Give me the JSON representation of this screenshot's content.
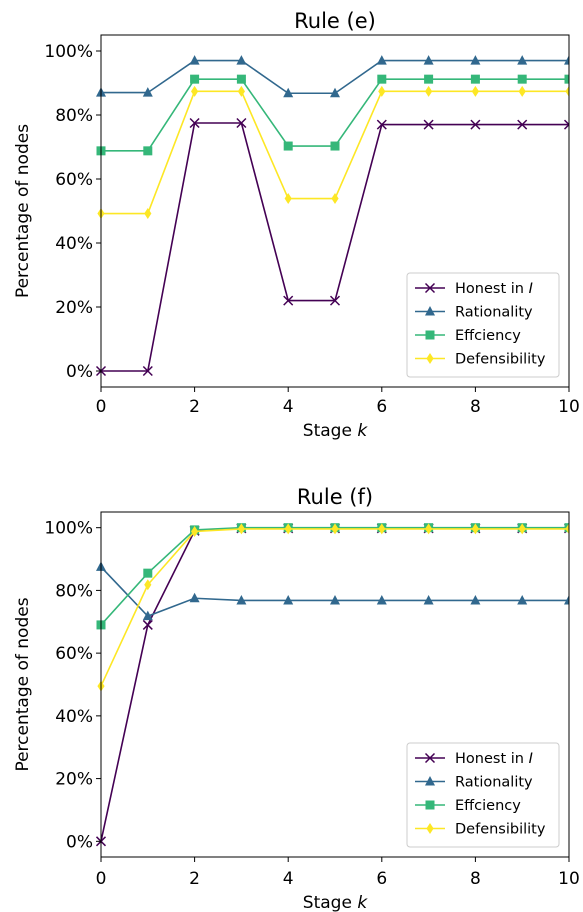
{
  "colors": {
    "honest": "#440154",
    "rationality": "#31688e",
    "efficiency": "#35b779",
    "defensibility": "#fde725"
  },
  "chart_data": [
    {
      "type": "line",
      "title": "Rule (e)",
      "xlabel": "Stage",
      "xlabel_var": "k",
      "ylabel": "Percentage of nodes",
      "xlim": [
        0,
        10
      ],
      "ylim": [
        -5,
        105
      ],
      "xticks": [
        0,
        2,
        4,
        6,
        8,
        10
      ],
      "yticks": [
        0,
        20,
        40,
        60,
        80,
        100
      ],
      "yticklabels": [
        "0%",
        "20%",
        "40%",
        "60%",
        "80%",
        "100%"
      ],
      "legend_position": "lower-right",
      "x": [
        0,
        1,
        2,
        3,
        4,
        5,
        6,
        7,
        8,
        9,
        10
      ],
      "series": [
        {
          "name": "Honest in ",
          "name_var": "I",
          "marker": "x",
          "color": "#440154",
          "values": [
            0,
            0,
            77.5,
            77.5,
            22,
            22,
            77,
            77,
            77,
            77,
            77
          ]
        },
        {
          "name": "Rationality",
          "marker": "triangle",
          "color": "#31688e",
          "values": [
            87,
            87,
            97,
            97,
            86.8,
            86.8,
            97,
            97,
            97,
            97,
            97
          ]
        },
        {
          "name": "Effciency",
          "marker": "square",
          "color": "#35b779",
          "values": [
            68.8,
            68.8,
            91.2,
            91.2,
            70.3,
            70.3,
            91.2,
            91.2,
            91.2,
            91.2,
            91.2
          ]
        },
        {
          "name": "Defensibility",
          "marker": "diamond",
          "color": "#fde725",
          "values": [
            49.2,
            49.2,
            87.4,
            87.4,
            53.9,
            53.9,
            87.4,
            87.4,
            87.4,
            87.4,
            87.4
          ]
        }
      ]
    },
    {
      "type": "line",
      "title": "Rule (f)",
      "xlabel": "Stage",
      "xlabel_var": "k",
      "ylabel": "Percentage of nodes",
      "xlim": [
        0,
        10
      ],
      "ylim": [
        -5,
        105
      ],
      "xticks": [
        0,
        2,
        4,
        6,
        8,
        10
      ],
      "yticks": [
        0,
        20,
        40,
        60,
        80,
        100
      ],
      "yticklabels": [
        "0%",
        "20%",
        "40%",
        "60%",
        "80%",
        "100%"
      ],
      "legend_position": "lower-right",
      "x": [
        0,
        1,
        2,
        3,
        4,
        5,
        6,
        7,
        8,
        9,
        10
      ],
      "series": [
        {
          "name": "Honest in ",
          "name_var": "I",
          "marker": "x",
          "color": "#440154",
          "values": [
            0,
            69,
            99,
            99.8,
            99.8,
            99.8,
            99.8,
            99.8,
            99.8,
            99.8,
            99.8
          ]
        },
        {
          "name": "Rationality",
          "marker": "triangle",
          "color": "#31688e",
          "values": [
            87.5,
            71.8,
            77.5,
            76.8,
            76.8,
            76.8,
            76.8,
            76.8,
            76.8,
            76.8,
            76.8
          ]
        },
        {
          "name": "Effciency",
          "marker": "square",
          "color": "#35b779",
          "values": [
            69,
            85.5,
            99.3,
            100,
            100,
            100,
            100,
            100,
            100,
            100,
            100
          ]
        },
        {
          "name": "Defensibility",
          "marker": "diamond",
          "color": "#fde725",
          "values": [
            49.5,
            81.8,
            98.8,
            99.6,
            99.6,
            99.6,
            99.6,
            99.6,
            99.6,
            99.6,
            99.6
          ]
        }
      ]
    }
  ]
}
